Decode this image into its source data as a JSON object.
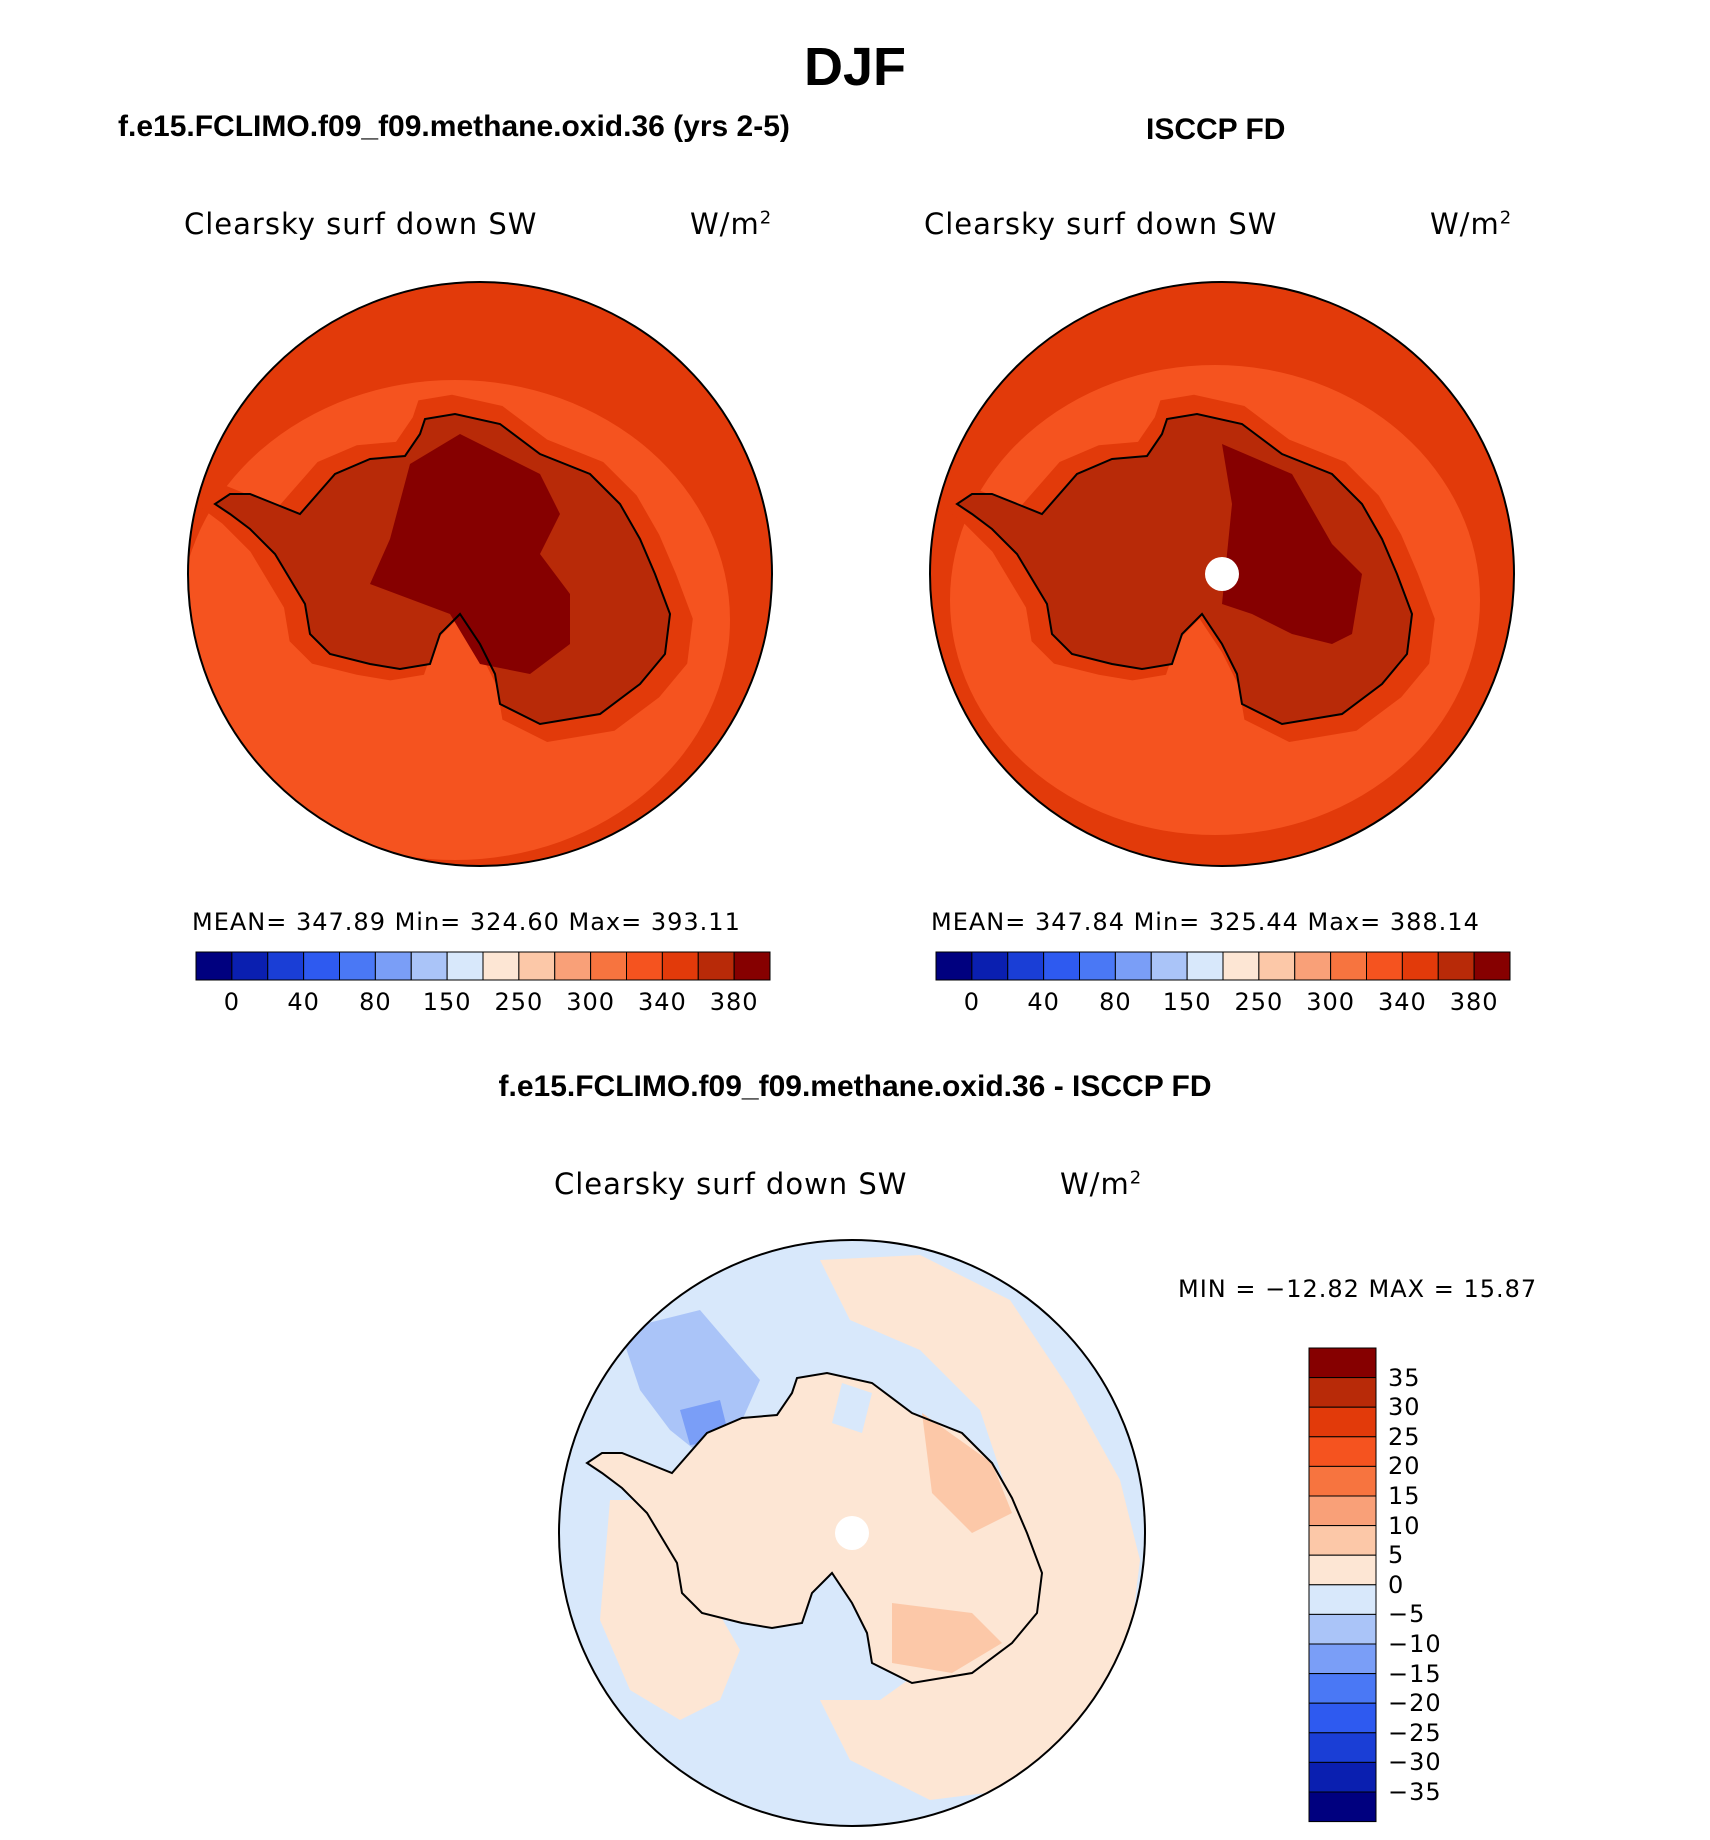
{
  "season_title": "DJF",
  "panels": {
    "model": {
      "title": "f.e15.FCLIMO.f09_f09.methane.oxid.36 (yrs 2-5)",
      "field_label": "Clearsky surf down SW",
      "units_base": "W/m",
      "units_exp": "2",
      "stats": "MEAN=  347.89    Min=  324.60    Max=  393.11"
    },
    "obs": {
      "title": "ISCCP FD",
      "field_label": "Clearsky surf down SW",
      "units_base": "W/m",
      "units_exp": "2",
      "stats": "MEAN=  347.84    Min=  325.44    Max=  388.14"
    },
    "diff": {
      "title": "f.e15.FCLIMO.f09_f09.methane.oxid.36 - ISCCP FD",
      "field_label": "Clearsky surf down SW",
      "units_base": "W/m",
      "units_exp": "2",
      "stats": "MIN =  −12.82  MAX =    15.87"
    }
  },
  "colorbar_abs": {
    "colors": [
      "#00007f",
      "#0a1fb0",
      "#1a3ed6",
      "#2e5af0",
      "#4a78f5",
      "#7a9ef7",
      "#aac4f8",
      "#d8e8fb",
      "#fde6d4",
      "#fcc8a8",
      "#f9a078",
      "#f7743f",
      "#f5531f",
      "#e23a0a",
      "#b82a08",
      "#860000"
    ],
    "tick_labels": [
      "0",
      "40",
      "80",
      "150",
      "250",
      "300",
      "340",
      "380"
    ]
  },
  "colorbar_diff": {
    "colors": [
      "#00007f",
      "#0a1fb0",
      "#1a3ed6",
      "#2e5af0",
      "#4a78f5",
      "#7a9ef7",
      "#aac4f8",
      "#d8e8fb",
      "#fde6d4",
      "#fcc8a8",
      "#f9a078",
      "#f7743f",
      "#f5531f",
      "#e23a0a",
      "#b82a08",
      "#860000"
    ],
    "tick_labels": [
      "35",
      "30",
      "25",
      "20",
      "15",
      "10",
      "5",
      "0",
      "−5",
      "−10",
      "−15",
      "−20",
      "−25",
      "−30",
      "−35"
    ]
  },
  "map_colors": {
    "outer": "#e23a0a",
    "ocean": "#f5531f",
    "coast_band": "#e23a0a",
    "interior": "#b82a08",
    "core": "#860000",
    "pole_mask": "#ffffff",
    "diff_ocean": "#d8e8fb",
    "diff_positive": "#fde6d4",
    "diff_positive_strong": "#fcc8a8",
    "diff_negative": "#aac4f8",
    "diff_negative_strong": "#7a9ef7",
    "coastline": "#000000"
  }
}
